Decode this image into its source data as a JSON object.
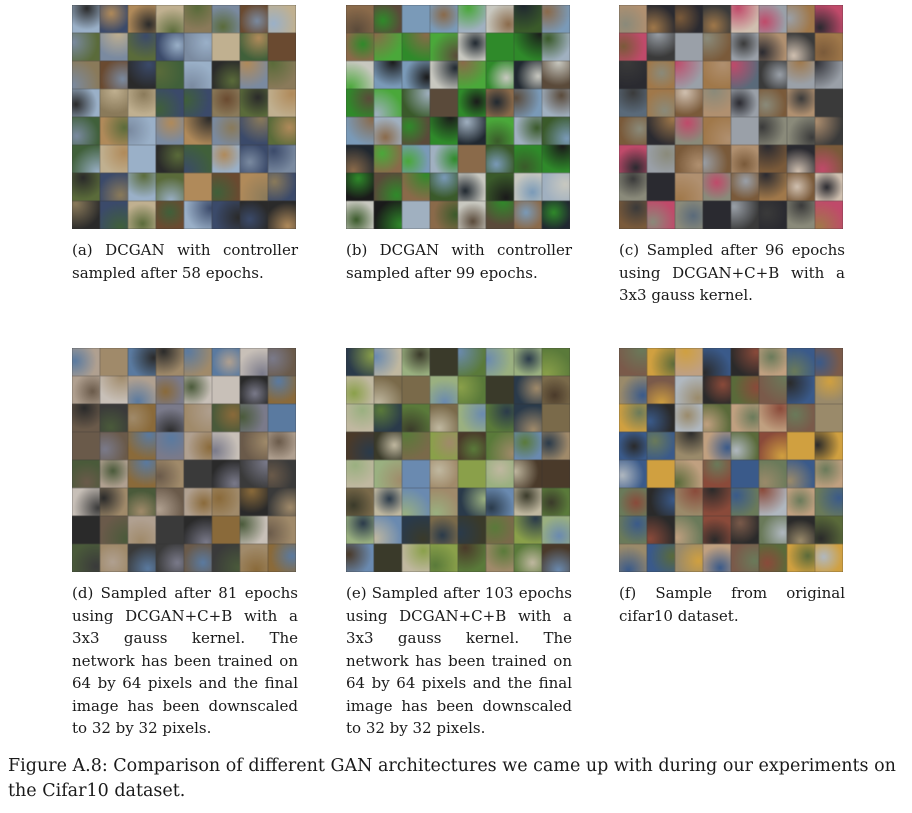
{
  "panels": [
    {
      "caption": "(a) DCGAN with controller sampled after 58 epochs.",
      "palette": [
        "#5a6b3a",
        "#8a7a5a",
        "#3b4a6a",
        "#c0b090",
        "#6a4a30",
        "#9ab0c8",
        "#40603a",
        "#2a2a2a",
        "#b08a5a",
        "#7a8aa0"
      ]
    },
    {
      "caption": "(b) DCGAN with controller sampled after 99 epochs.",
      "palette": [
        "#2f8a2a",
        "#4aa83a",
        "#1a1a1a",
        "#7a9ab8",
        "#c8c8c0",
        "#5a4a3a",
        "#8a6a4a",
        "#3a5a2a",
        "#a0b0c0",
        "#202830"
      ]
    },
    {
      "caption": "(c) Sampled after 96 epochs using DCGAN+C+B with a 3x3 gauss kernel.",
      "palette": [
        "#7a5a3a",
        "#a0784a",
        "#c04a6a",
        "#3a3a3a",
        "#8a8a7a",
        "#d0c0b0",
        "#5a6a7a",
        "#b09070",
        "#2a2a30",
        "#9aa0a8"
      ]
    },
    {
      "caption": "(d) Sampled after 81 epochs using DCGAN+C+B with a 3x3 gauss kernel. The network has been trained on 64 by 64 pixels and the final image has been downscaled to 32 by 32 pixels.",
      "palette": [
        "#3a3a3a",
        "#6a5a4a",
        "#a08a6a",
        "#5a7aa0",
        "#8a6a3a",
        "#c8c0b8",
        "#2a2a2a",
        "#4a5a3a",
        "#b0a090",
        "#7a7a8a"
      ]
    },
    {
      "caption": "(e) Sampled after 103 epochs using DCGAN+C+B with a 3x3 gauss kernel. The network has been trained on 64 by 64 pixels and the final image has been downscaled to 32 by 32 pixels.",
      "palette": [
        "#5a7a3a",
        "#8aa04a",
        "#3a3a2a",
        "#a08a6a",
        "#6a8ab0",
        "#c0b8a0",
        "#4a3a2a",
        "#7a6a4a",
        "#9ab080",
        "#2a3a4a"
      ]
    },
    {
      "caption": "(f) Sample from original cifar10 dataset.",
      "palette": [
        "#6a7a5a",
        "#9a8a6a",
        "#3a5a8a",
        "#c0a080",
        "#8a4a3a",
        "#5a6a3a",
        "#b0b8c0",
        "#2a2a2a",
        "#d0a040",
        "#7a5a4a"
      ]
    }
  ],
  "figure_caption": "Figure A.8: Comparison of different GAN architectures we came up with during our experiments on the Cifar10 dataset."
}
